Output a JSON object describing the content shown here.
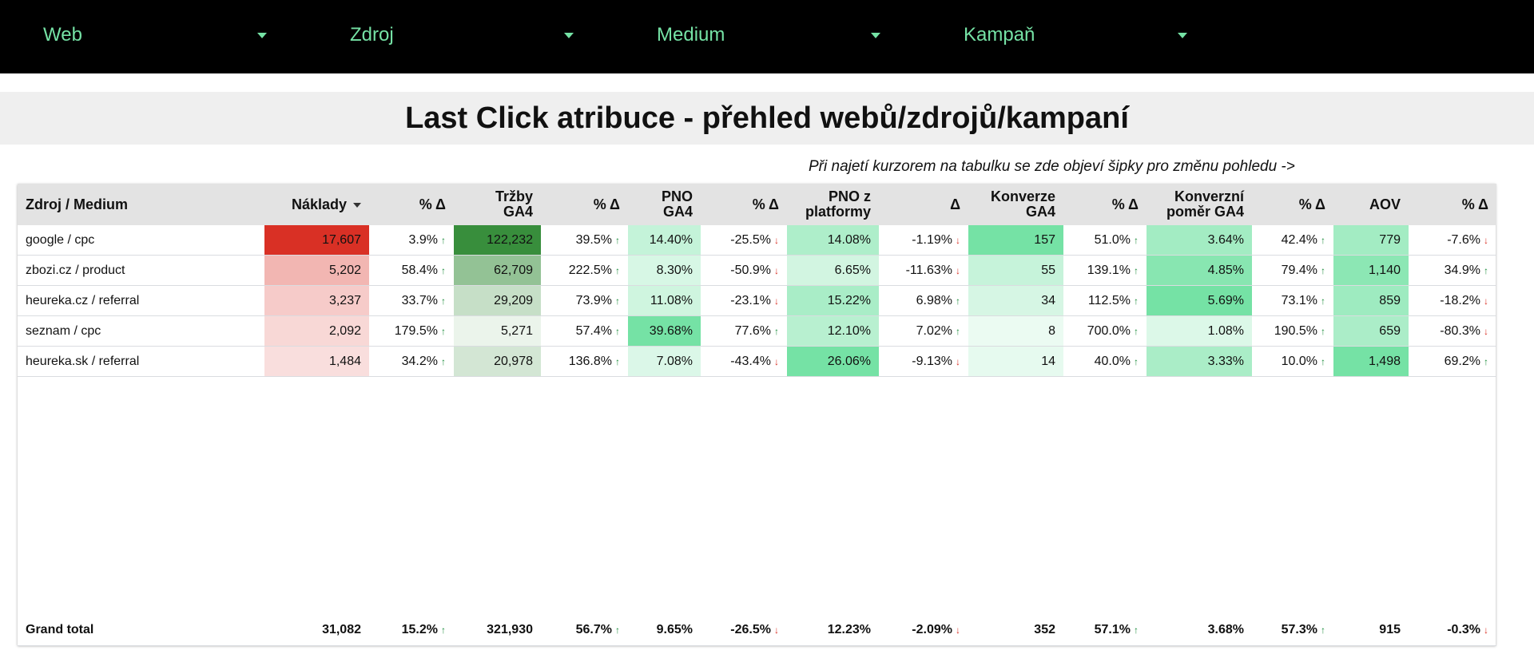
{
  "filters": [
    {
      "label": "Web"
    },
    {
      "label": "Zdroj"
    },
    {
      "label": "Medium"
    },
    {
      "label": "Kampaň"
    }
  ],
  "title": "Last Click atribuce - přehled webů/zdrojů/kampaní",
  "hint": "Při najetí kurzorem na tabulku se zde objeví šipky pro změnu pohledu ->",
  "colors": {
    "accent_green": "#75e2a5",
    "filterbar_bg": "#000000",
    "arrow_up": "#1e8e3e",
    "arrow_down": "#d93025"
  },
  "table": {
    "headers": {
      "c0": "Zdroj / Medium",
      "c1": "Náklady",
      "c2": "% Δ",
      "c3a": "Tržby",
      "c3b": "GA4",
      "c4": "% Δ",
      "c5a": "PNO",
      "c5b": "GA4",
      "c6": "% Δ",
      "c7a": "PNO z",
      "c7b": "platformy",
      "c8": "Δ",
      "c9a": "Konverze",
      "c9b": "GA4",
      "c10": "% Δ",
      "c11a": "Konverzní",
      "c11b": "poměr GA4",
      "c12": "% Δ",
      "c13": "AOV",
      "c14": "% Δ"
    },
    "rows": [
      {
        "c0": "google / cpc",
        "c1": "17,607",
        "c2": "3.9%",
        "c3": "122,232",
        "c4": "39.5%",
        "c5": "14.40%",
        "c6": "-25.5%",
        "c7": "14.08%",
        "c8": "-1.19%",
        "c9": "157",
        "c10": "51.0%",
        "c11": "3.64%",
        "c12": "42.4%",
        "c13": "779",
        "c14": "-7.6%"
      },
      {
        "c0": "zbozi.cz / product",
        "c1": "5,202",
        "c2": "58.4%",
        "c3": "62,709",
        "c4": "222.5%",
        "c5": "8.30%",
        "c6": "-50.9%",
        "c7": "6.65%",
        "c8": "-11.63%",
        "c9": "55",
        "c10": "139.1%",
        "c11": "4.85%",
        "c12": "79.4%",
        "c13": "1,140",
        "c14": "34.9%"
      },
      {
        "c0": "heureka.cz / referral",
        "c1": "3,237",
        "c2": "33.7%",
        "c3": "29,209",
        "c4": "73.9%",
        "c5": "11.08%",
        "c6": "-23.1%",
        "c7": "15.22%",
        "c8": "6.98%",
        "c9": "34",
        "c10": "112.5%",
        "c11": "5.69%",
        "c12": "73.1%",
        "c13": "859",
        "c14": "-18.2%"
      },
      {
        "c0": "seznam / cpc",
        "c1": "2,092",
        "c2": "179.5%",
        "c3": "5,271",
        "c4": "57.4%",
        "c5": "39.68%",
        "c6": "77.6%",
        "c7": "12.10%",
        "c8": "7.02%",
        "c9": "8",
        "c10": "700.0%",
        "c11": "1.08%",
        "c12": "190.5%",
        "c13": "659",
        "c14": "-80.3%"
      },
      {
        "c0": "heureka.sk / referral",
        "c1": "1,484",
        "c2": "34.2%",
        "c3": "20,978",
        "c4": "136.8%",
        "c5": "7.08%",
        "c6": "-43.4%",
        "c7": "26.06%",
        "c8": "-9.13%",
        "c9": "14",
        "c10": "40.0%",
        "c11": "3.33%",
        "c12": "10.0%",
        "c13": "1,498",
        "c14": "69.2%"
      }
    ],
    "total": {
      "c0": "Grand total",
      "c1": "31,082",
      "c2": "15.2%",
      "c3": "321,930",
      "c4": "56.7%",
      "c5": "9.65%",
      "c6": "-26.5%",
      "c7": "12.23%",
      "c8": "-2.09%",
      "c9": "352",
      "c10": "57.1%",
      "c11": "3.68%",
      "c12": "57.3%",
      "c13": "915",
      "c14": "-0.3%"
    }
  }
}
